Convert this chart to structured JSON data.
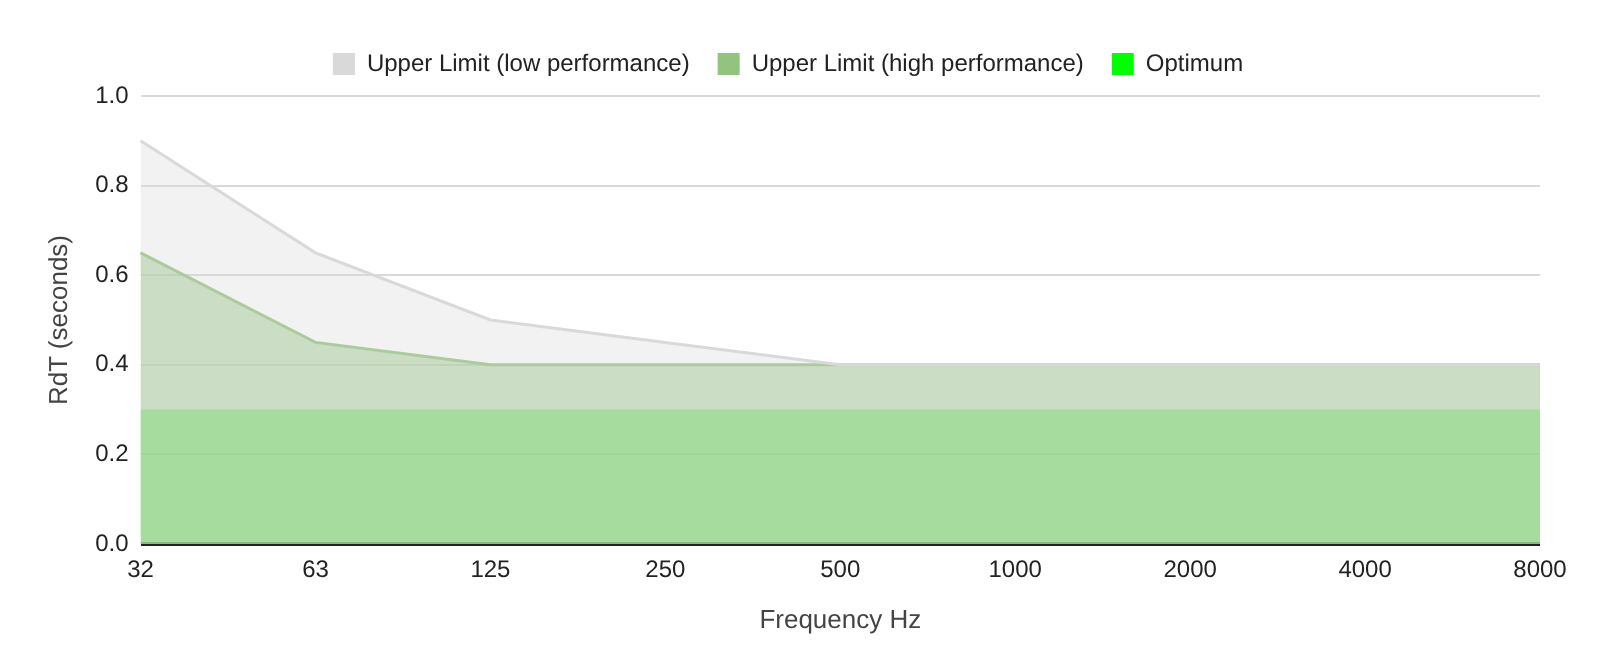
{
  "chart_data": {
    "type": "area",
    "categories": [
      "32",
      "63",
      "125",
      "250",
      "500",
      "1000",
      "2000",
      "4000",
      "8000"
    ],
    "series": [
      {
        "name": "Upper Limit (low performance)",
        "color": "#d9d9d9",
        "values": [
          0.9,
          0.65,
          0.5,
          0.45,
          0.4,
          0.4,
          0.4,
          0.4,
          0.4
        ]
      },
      {
        "name": "Upper Limit (high performance)",
        "color": "#93c47d",
        "values": [
          0.65,
          0.45,
          0.4,
          0.4,
          0.4,
          0.4,
          0.4,
          0.4,
          0.4
        ]
      },
      {
        "name": "Optimum",
        "color": "#00ff00",
        "values": [
          0.3,
          0.3,
          0.3,
          0.3,
          0.3,
          0.3,
          0.3,
          0.3,
          0.3
        ]
      }
    ],
    "xlabel": "Frequency Hz",
    "ylabel": "RdT (seconds)",
    "ylim": [
      0,
      1
    ],
    "yticks": [
      {
        "value": 0,
        "label": "0.0"
      },
      0.2,
      0.4,
      0.6,
      0.8,
      {
        "value": 1,
        "label": "1.0"
      }
    ],
    "grid": "y",
    "legend": "top"
  }
}
